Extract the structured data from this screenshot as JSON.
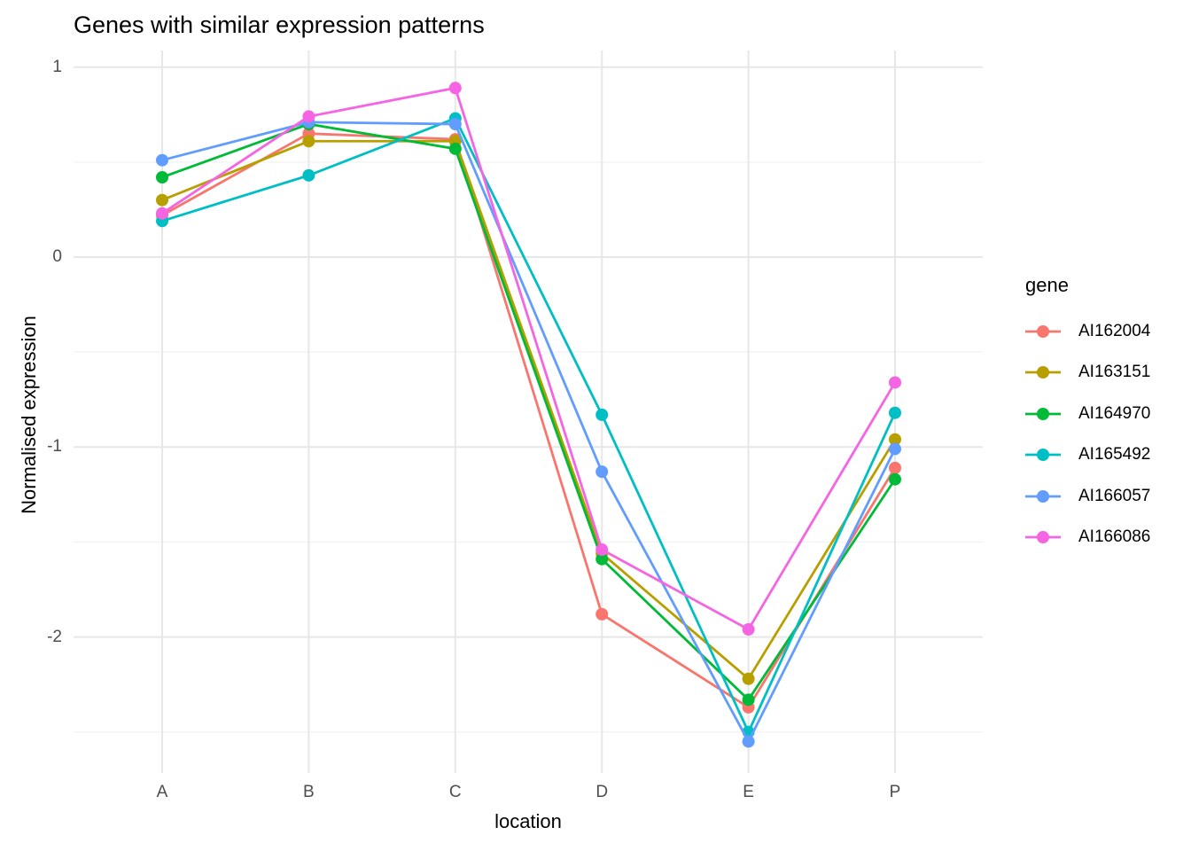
{
  "chart_data": {
    "type": "line",
    "title": "Genes with similar expression patterns",
    "xlabel": "location",
    "ylabel": "Normalised expression",
    "categories": [
      "A",
      "B",
      "C",
      "D",
      "E",
      "P"
    ],
    "series": [
      {
        "name": "AI162004",
        "color": "#F8766D",
        "values": [
          0.22,
          0.65,
          0.62,
          -1.88,
          -2.37,
          -1.11
        ]
      },
      {
        "name": "AI163151",
        "color": "#B79F00",
        "values": [
          0.3,
          0.61,
          0.61,
          -1.56,
          -2.22,
          -0.96
        ]
      },
      {
        "name": "AI164970",
        "color": "#00BA38",
        "values": [
          0.42,
          0.7,
          0.57,
          -1.59,
          -2.33,
          -1.17
        ]
      },
      {
        "name": "AI165492",
        "color": "#00BFC4",
        "values": [
          0.19,
          0.43,
          0.73,
          -0.83,
          -2.5,
          -0.82
        ]
      },
      {
        "name": "AI166057",
        "color": "#619CFF",
        "values": [
          0.51,
          0.71,
          0.7,
          -1.13,
          -2.55,
          -1.01
        ]
      },
      {
        "name": "AI166086",
        "color": "#F564E3",
        "values": [
          0.23,
          0.74,
          0.89,
          -1.54,
          -1.96,
          -0.66
        ]
      }
    ],
    "y_axis": {
      "tick_labels": [
        "1",
        "0",
        "-1",
        "-2"
      ],
      "major_ticks": [
        1,
        0,
        -1,
        -2
      ],
      "minor_ticks": [
        0.5,
        -0.5,
        -1.5,
        -2.5
      ],
      "ylim": [
        -2.72,
        1.09
      ]
    },
    "legend": {
      "title": "gene",
      "position": "right",
      "entries": [
        "AI162004",
        "AI163151",
        "AI164970",
        "AI165492",
        "AI166057",
        "AI166086"
      ]
    },
    "grid": "major and minor horizontal, major vertical at categories"
  },
  "colors": {
    "grid_major": "#E7E7E7",
    "grid_minor": "#F2F2F2",
    "tick_text": "#4D4D4D",
    "title_text": "#000000"
  }
}
